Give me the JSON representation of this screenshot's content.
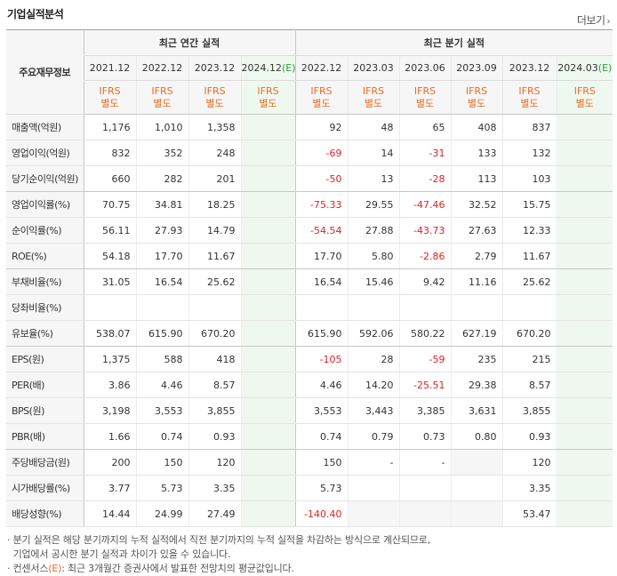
{
  "section_title": "기업실적분석",
  "more_link": "더보기",
  "corner_label": "주요재무정보",
  "groups": {
    "annual": "최근 연간 실적",
    "quarterly": "최근 분기 실적"
  },
  "periods": [
    {
      "label": "2021.12",
      "ifrs": "IFRS",
      "basis": "별도",
      "estimate": false
    },
    {
      "label": "2022.12",
      "ifrs": "IFRS",
      "basis": "별도",
      "estimate": false
    },
    {
      "label": "2023.12",
      "ifrs": "IFRS",
      "basis": "별도",
      "estimate": false
    },
    {
      "label": "2024.12",
      "est_mark": "(E)",
      "ifrs": "IFRS",
      "basis": "별도",
      "estimate": true
    },
    {
      "label": "2022.12",
      "ifrs": "IFRS",
      "basis": "별도",
      "estimate": false
    },
    {
      "label": "2023.03",
      "ifrs": "IFRS",
      "basis": "별도",
      "estimate": false
    },
    {
      "label": "2023.06",
      "ifrs": "IFRS",
      "basis": "별도",
      "estimate": false
    },
    {
      "label": "2023.09",
      "ifrs": "IFRS",
      "basis": "별도",
      "estimate": false
    },
    {
      "label": "2023.12",
      "ifrs": "IFRS",
      "basis": "별도",
      "estimate": false
    },
    {
      "label": "2024.03",
      "est_mark": "(E)",
      "ifrs": "IFRS",
      "basis": "별도",
      "estimate": true
    }
  ],
  "rows": [
    {
      "label": "매출액(억원)",
      "values": [
        "1,176",
        "1,010",
        "1,358",
        "",
        "92",
        "48",
        "65",
        "408",
        "837",
        ""
      ]
    },
    {
      "label": "영업이익(억원)",
      "values": [
        "832",
        "352",
        "248",
        "",
        "-69",
        "14",
        "-31",
        "133",
        "132",
        ""
      ]
    },
    {
      "label": "당기순이익(억원)",
      "values": [
        "660",
        "282",
        "201",
        "",
        "-50",
        "13",
        "-28",
        "113",
        "103",
        ""
      ],
      "group_end": true
    },
    {
      "label": "영업이익률(%)",
      "values": [
        "70.75",
        "34.81",
        "18.25",
        "",
        "-75.33",
        "29.55",
        "-47.46",
        "32.52",
        "15.75",
        ""
      ]
    },
    {
      "label": "순이익률(%)",
      "values": [
        "56.11",
        "27.93",
        "14.79",
        "",
        "-54.54",
        "27.88",
        "-43.73",
        "27.63",
        "12.33",
        ""
      ]
    },
    {
      "label": "ROE(%)",
      "values": [
        "54.18",
        "17.70",
        "11.67",
        "",
        "17.70",
        "5.80",
        "-2.86",
        "2.79",
        "11.67",
        ""
      ],
      "group_end": true
    },
    {
      "label": "부채비율(%)",
      "values": [
        "31.05",
        "16.54",
        "25.62",
        "",
        "16.54",
        "15.46",
        "9.42",
        "11.16",
        "25.62",
        ""
      ]
    },
    {
      "label": "당좌비율(%)",
      "values": [
        "",
        "",
        "",
        "",
        "",
        "",
        "",
        "",
        "",
        ""
      ]
    },
    {
      "label": "유보율(%)",
      "values": [
        "538.07",
        "615.90",
        "670.20",
        "",
        "615.90",
        "592.06",
        "580.22",
        "627.19",
        "670.20",
        ""
      ],
      "group_end": true
    },
    {
      "label": "EPS(원)",
      "values": [
        "1,375",
        "588",
        "418",
        "",
        "-105",
        "28",
        "-59",
        "235",
        "215",
        ""
      ]
    },
    {
      "label": "PER(배)",
      "values": [
        "3.86",
        "4.46",
        "8.57",
        "",
        "4.46",
        "14.20",
        "-25.51",
        "29.38",
        "8.57",
        ""
      ]
    },
    {
      "label": "BPS(원)",
      "values": [
        "3,198",
        "3,553",
        "3,855",
        "",
        "3,553",
        "3,443",
        "3,385",
        "3,631",
        "3,855",
        ""
      ]
    },
    {
      "label": "PBR(배)",
      "values": [
        "1.66",
        "0.74",
        "0.93",
        "",
        "0.74",
        "0.79",
        "0.73",
        "0.80",
        "0.93",
        ""
      ],
      "group_end": true
    },
    {
      "label": "주당배당금(원)",
      "values": [
        "200",
        "150",
        "120",
        "",
        "150",
        "-",
        "-",
        "",
        "120",
        ""
      ],
      "gray_cols": [
        7
      ]
    },
    {
      "label": "시가배당률(%)",
      "values": [
        "3.77",
        "5.73",
        "3.35",
        "",
        "5.73",
        "",
        "",
        "",
        "3.35",
        ""
      ]
    },
    {
      "label": "배당성향(%)",
      "values": [
        "14.44",
        "24.99",
        "27.49",
        "",
        "-140.40",
        "",
        "",
        "",
        "53.47",
        ""
      ],
      "gray_cols": [
        5,
        6,
        7
      ]
    }
  ],
  "footnotes": {
    "line1": "· 분기 실적은 해당 분기까지의 누적 실적에서 직전 분기까지의 누적 실적을 차감하는 방식으로 계산되므로,",
    "line2": "  기업에서 공시한 분기 실적과 차이가 있을 수 있습니다.",
    "line3_prefix": "· 컨센서스",
    "line3_mark": "(E)",
    "line3_suffix": ": 최근 3개월간 증권사에서 발표한 전망치의 평균값입니다."
  }
}
